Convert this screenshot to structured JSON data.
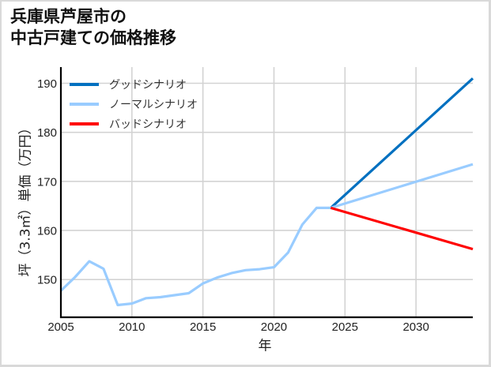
{
  "title": {
    "line1": "兵庫県芦屋市の",
    "line2": "中古戸建ての価格推移"
  },
  "chart_data": {
    "type": "line",
    "title": "兵庫県芦屋市の中古戸建ての価格推移",
    "xlabel": "年",
    "ylabel": "坪（3.3㎡）単価（万円）",
    "xlim": [
      2005,
      2034
    ],
    "ylim": [
      142.3,
      193.3
    ],
    "x_ticks": [
      2005,
      2010,
      2015,
      2020,
      2025,
      2030
    ],
    "y_ticks": [
      150,
      160,
      170,
      180,
      190
    ],
    "grid": true,
    "legend_position": "upper left",
    "series": [
      {
        "name": "グッドシナリオ",
        "color": "#0070C0",
        "x": [
          2024,
          2034
        ],
        "values": [
          164.6,
          191.0
        ]
      },
      {
        "name": "ノーマルシナリオ",
        "color": "#99CCFF",
        "x": [
          2005,
          2006,
          2007,
          2008,
          2009,
          2010,
          2011,
          2012,
          2013,
          2014,
          2015,
          2016,
          2017,
          2018,
          2019,
          2020,
          2021,
          2022,
          2023,
          2024,
          2034
        ],
        "values": [
          147.7,
          150.5,
          153.7,
          152.2,
          144.8,
          145.1,
          146.2,
          146.4,
          146.8,
          147.2,
          149.2,
          150.4,
          151.3,
          151.9,
          152.1,
          152.5,
          155.5,
          161.2,
          164.6,
          164.6,
          173.5
        ]
      },
      {
        "name": "バッドシナリオ",
        "color": "#FF0000",
        "x": [
          2024,
          2034
        ],
        "values": [
          164.6,
          156.2
        ]
      }
    ],
    "gridline_color": "#d3d3d3",
    "axis_color": "#000000"
  }
}
